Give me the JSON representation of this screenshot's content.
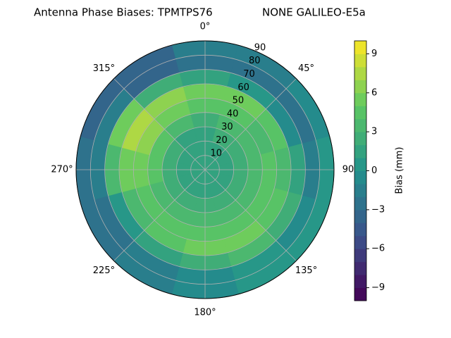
{
  "chart_data": {
    "type": "polar_contour",
    "title": "Antenna Phase Biases: TPMTPS76",
    "subtitle": "NONE GALILEO-E5a",
    "theta": [
      0,
      30,
      60,
      90,
      120,
      150,
      180,
      210,
      240,
      270,
      300,
      330
    ],
    "r": [
      5,
      15,
      25,
      35,
      45,
      55,
      65,
      75,
      85
    ],
    "values": [
      [
        1,
        1,
        1,
        1,
        1,
        1,
        1,
        1,
        1,
        1,
        1,
        1
      ],
      [
        1,
        1,
        1,
        1,
        1,
        1,
        1,
        1,
        1,
        1,
        1,
        1
      ],
      [
        1,
        2,
        2,
        2,
        2,
        2,
        2,
        2,
        2,
        2,
        2,
        1
      ],
      [
        2,
        3,
        3,
        3,
        3,
        3,
        3,
        3,
        3,
        4,
        4,
        3
      ],
      [
        4,
        4,
        3,
        4,
        4,
        4,
        4,
        4,
        4,
        5,
        6,
        5
      ],
      [
        5,
        5,
        4,
        3,
        4,
        5,
        5,
        4,
        3,
        5,
        7,
        6
      ],
      [
        1,
        0,
        -1,
        1,
        2,
        3,
        2,
        1,
        0,
        3,
        5,
        2
      ],
      [
        -3,
        -3,
        -3,
        -2,
        -1,
        0,
        -1,
        -2,
        -3,
        -2,
        -2,
        -4
      ],
      [
        -2,
        -2,
        -1,
        0,
        0,
        0,
        -1,
        -2,
        -3,
        -3,
        -4,
        -4
      ]
    ],
    "rlim": [
      0,
      90
    ],
    "rticks": [
      10,
      20,
      30,
      40,
      50,
      60,
      70,
      80,
      90
    ],
    "thetaticks": [
      {
        "value": 0,
        "label": "0°"
      },
      {
        "value": 45,
        "label": "45°"
      },
      {
        "value": 90,
        "label": "90"
      },
      {
        "value": 135,
        "label": "135°"
      },
      {
        "value": 180,
        "label": "180°"
      },
      {
        "value": 225,
        "label": "225°"
      },
      {
        "value": 270,
        "label": "270°"
      },
      {
        "value": 315,
        "label": "315°"
      }
    ],
    "grid": true,
    "colorbar": {
      "label": "Bias (mm)",
      "lim": [
        -10,
        10
      ],
      "levels": [
        -10,
        -9,
        -8,
        -7,
        -6,
        -5,
        -4,
        -3,
        -2,
        -1,
        0,
        1,
        2,
        3,
        4,
        5,
        6,
        7,
        8,
        9,
        10
      ],
      "ticks": [
        {
          "value": -9,
          "label": "−9"
        },
        {
          "value": -6,
          "label": "−6"
        },
        {
          "value": -3,
          "label": "−3"
        },
        0,
        3,
        6,
        9
      ]
    }
  }
}
